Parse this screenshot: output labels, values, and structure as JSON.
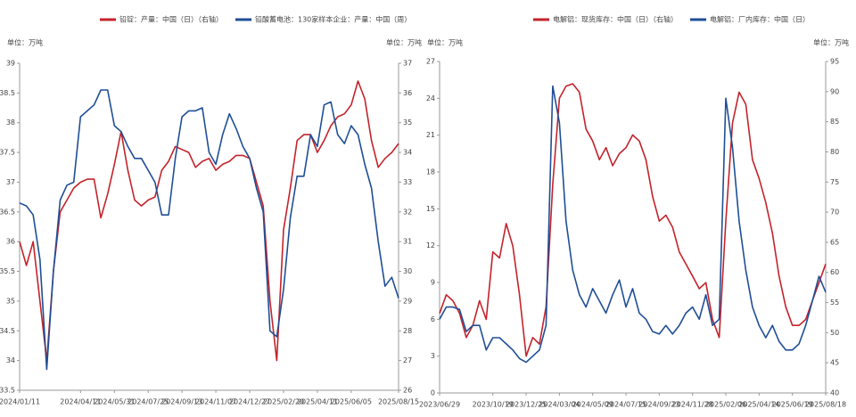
{
  "chart_data": [
    {
      "type": "line",
      "ylabel": "单位：万吨",
      "y2label": "单位：万吨",
      "categories": [
        "2024/01/11",
        null,
        null,
        null,
        null,
        null,
        null,
        null,
        null,
        "2024/04/11",
        null,
        null,
        null,
        null,
        "2024/05/31",
        null,
        null,
        null,
        null,
        "2024/07/25",
        null,
        null,
        null,
        null,
        "2024/09/13",
        null,
        null,
        null,
        null,
        "2024/11/07",
        null,
        null,
        null,
        null,
        "2024/12/27",
        null,
        null,
        null,
        null,
        "2025/02/20",
        null,
        null,
        null,
        null,
        "2025/04/11",
        null,
        null,
        null,
        null,
        "2025/06/05",
        null,
        null,
        null,
        null,
        null,
        null,
        "2025/08/15"
      ],
      "ylim": [
        33.5,
        39
      ],
      "yticks": [
        33.5,
        34,
        34.5,
        35,
        35.5,
        36,
        36.5,
        37,
        37.5,
        38,
        38.5,
        39
      ],
      "y2lim": [
        26,
        37
      ],
      "y2ticks": [
        26,
        27,
        28,
        29,
        30,
        31,
        32,
        33,
        34,
        35,
        36,
        37
      ],
      "series": [
        {
          "name": "铅锭：产量：中国（日）（右轴）",
          "color": "#c4232b",
          "axis": "y2",
          "values": [
            31.0,
            30.2,
            31.0,
            29.0,
            27.0,
            30.0,
            32.0,
            32.4,
            32.8,
            33.0,
            33.1,
            33.1,
            31.8,
            32.6,
            33.6,
            34.7,
            33.4,
            32.4,
            32.2,
            32.4,
            32.5,
            33.4,
            33.7,
            34.2,
            34.1,
            34.0,
            33.5,
            33.7,
            33.8,
            33.4,
            33.6,
            33.7,
            33.9,
            33.9,
            33.8,
            33.0,
            32.2,
            29.0,
            27.0,
            31.4,
            32.8,
            34.4,
            34.6,
            34.6,
            34.0,
            34.4,
            34.9,
            35.2,
            35.3,
            35.6,
            36.4,
            35.8,
            34.4,
            33.5,
            33.8,
            34.0,
            34.3
          ]
        },
        {
          "name": "铅酸蓄电池：130家样本企业：产量：中国（周）",
          "color": "#1f4e96",
          "values": [
            36.65,
            36.6,
            36.45,
            35.7,
            33.85,
            35.5,
            36.7,
            36.95,
            37.0,
            38.1,
            38.2,
            38.3,
            38.55,
            38.55,
            37.95,
            37.85,
            37.6,
            37.4,
            37.4,
            37.2,
            37.0,
            36.45,
            36.45,
            37.4,
            38.1,
            38.2,
            38.2,
            38.25,
            37.5,
            37.3,
            37.8,
            38.15,
            37.9,
            37.6,
            37.4,
            36.9,
            36.5,
            34.5,
            34.4,
            35.2,
            36.4,
            37.1,
            37.1,
            37.8,
            37.6,
            38.3,
            38.35,
            37.8,
            37.65,
            37.95,
            37.8,
            37.3,
            36.9,
            36.0,
            35.25,
            35.4,
            35.05
          ]
        }
      ]
    },
    {
      "type": "line",
      "ylabel": "单位：万吨",
      "y2label": "单位：万吨",
      "categories": [
        "2023/06/29",
        null,
        null,
        null,
        null,
        null,
        null,
        null,
        "2023/10/19",
        null,
        null,
        null,
        null,
        "2023/12/25",
        null,
        null,
        null,
        null,
        "2024/03/04",
        null,
        null,
        null,
        null,
        "2024/05/09",
        null,
        null,
        null,
        null,
        "2024/07/15",
        null,
        null,
        null,
        null,
        "2024/09/23",
        null,
        null,
        null,
        null,
        "2024/11/28",
        null,
        null,
        null,
        null,
        "2025/02/06",
        null,
        null,
        null,
        null,
        "2025/04/14",
        null,
        null,
        null,
        null,
        "2025/06/19",
        null,
        null,
        null,
        null,
        "2025/08/18"
      ],
      "ylim": [
        0,
        27
      ],
      "yticks": [
        0,
        3,
        6,
        9,
        12,
        15,
        18,
        21,
        24,
        27
      ],
      "y2lim": [
        40,
        95
      ],
      "y2ticks": [
        40,
        45,
        50,
        55,
        60,
        65,
        70,
        75,
        80,
        85,
        90,
        95
      ],
      "series": [
        {
          "name": "电解铝：现货库存：中国（日）（右轴）",
          "color": "#c4232b",
          "axis": "y2",
          "values": [
            53.2,
            56.3,
            55.3,
            53.2,
            49.2,
            51.2,
            55.3,
            52.2,
            63.4,
            62.4,
            68.1,
            64.4,
            56.3,
            46.1,
            49.2,
            48.1,
            54.3,
            74.6,
            88.9,
            90.9,
            91.3,
            89.9,
            83.8,
            81.8,
            78.7,
            80.7,
            77.7,
            79.7,
            80.7,
            82.8,
            81.8,
            78.7,
            72.6,
            68.5,
            69.5,
            67.5,
            63.4,
            61.4,
            59.4,
            57.3,
            58.3,
            52.2,
            49.2,
            68.5,
            84.8,
            89.9,
            87.9,
            78.7,
            75.6,
            71.6,
            66.5,
            59.4,
            54.3,
            51.2,
            51.2,
            52.2,
            55.3,
            58.3,
            61.4
          ]
        },
        {
          "name": "电解铝：厂内库存：中国（日）",
          "color": "#1f4e96",
          "values": [
            6.0,
            7.0,
            7.0,
            6.8,
            5.0,
            5.5,
            5.5,
            3.5,
            4.5,
            4.5,
            4.0,
            3.5,
            2.8,
            2.5,
            3.0,
            3.5,
            5.5,
            25.0,
            22.0,
            14.0,
            10.0,
            8.0,
            7.0,
            8.5,
            7.5,
            6.5,
            8.0,
            9.2,
            7.0,
            8.5,
            6.5,
            6.0,
            5.0,
            4.8,
            5.5,
            4.8,
            5.5,
            6.5,
            7.0,
            6.0,
            8.0,
            5.5,
            6.0,
            24.0,
            20.0,
            14.0,
            10.0,
            7.0,
            5.5,
            4.5,
            5.5,
            4.2,
            3.5,
            3.5,
            4.0,
            5.5,
            7.5,
            9.5,
            8.2
          ]
        }
      ]
    }
  ]
}
